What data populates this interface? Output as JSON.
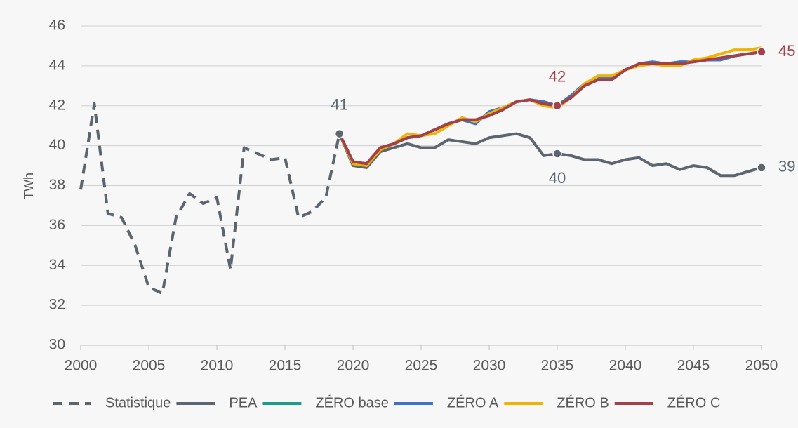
{
  "chart_data": {
    "type": "line",
    "ylabel": "TWh",
    "xlim": [
      2000,
      2050
    ],
    "ylim": [
      30,
      46
    ],
    "xticks": [
      2000,
      2005,
      2010,
      2015,
      2020,
      2025,
      2030,
      2035,
      2040,
      2045,
      2050
    ],
    "yticks": [
      30,
      32,
      34,
      36,
      38,
      40,
      42,
      44,
      46
    ],
    "grid": true,
    "legend": "bottom",
    "series": [
      {
        "name": "Statistique",
        "color": "#5b6570",
        "dashed": true,
        "x": [
          2000,
          2001,
          2002,
          2003,
          2004,
          2005,
          2006,
          2007,
          2008,
          2009,
          2010,
          2011,
          2012,
          2013,
          2014,
          2015,
          2016,
          2017,
          2018,
          2019
        ],
        "values": [
          37.8,
          42.1,
          36.6,
          36.4,
          35.0,
          32.9,
          32.6,
          36.4,
          37.6,
          37.1,
          37.4,
          33.8,
          39.9,
          39.6,
          39.3,
          39.4,
          36.4,
          36.7,
          37.4,
          40.6
        ]
      },
      {
        "name": "PEA",
        "color": "#5d6670",
        "x": [
          2019,
          2020,
          2021,
          2022,
          2023,
          2024,
          2025,
          2026,
          2027,
          2028,
          2029,
          2030,
          2031,
          2032,
          2033,
          2034,
          2035,
          2036,
          2037,
          2038,
          2039,
          2040,
          2041,
          2042,
          2043,
          2044,
          2045,
          2046,
          2047,
          2048,
          2049,
          2050
        ],
        "values": [
          40.6,
          39.0,
          38.9,
          39.7,
          39.9,
          40.1,
          39.9,
          39.9,
          40.3,
          40.2,
          40.1,
          40.4,
          40.5,
          40.6,
          40.4,
          39.5,
          39.6,
          39.5,
          39.3,
          39.3,
          39.1,
          39.3,
          39.4,
          39.0,
          39.1,
          38.8,
          39.0,
          38.9,
          38.5,
          38.5,
          38.7,
          38.9
        ]
      },
      {
        "name": "ZÉRO base",
        "color": "#1a9e8a",
        "x": [
          2019,
          2020,
          2021,
          2022,
          2023,
          2024,
          2025,
          2026,
          2027,
          2028,
          2029,
          2030,
          2031,
          2032,
          2033,
          2034,
          2035,
          2036,
          2037,
          2038,
          2039,
          2040,
          2041,
          2042,
          2043,
          2044,
          2045,
          2046,
          2047,
          2048,
          2049,
          2050
        ],
        "values": [
          40.6,
          39.1,
          39.0,
          39.8,
          40.1,
          40.4,
          40.5,
          40.8,
          41.1,
          41.3,
          41.1,
          41.7,
          41.9,
          42.2,
          42.3,
          42.2,
          42.0,
          42.5,
          43.1,
          43.4,
          43.4,
          43.8,
          44.1,
          44.2,
          44.1,
          44.2,
          44.2,
          44.3,
          44.3,
          44.5,
          44.6,
          44.7
        ]
      },
      {
        "name": "ZÉRO A",
        "color": "#3e73c4",
        "x": [
          2019,
          2020,
          2021,
          2022,
          2023,
          2024,
          2025,
          2026,
          2027,
          2028,
          2029,
          2030,
          2031,
          2032,
          2033,
          2034,
          2035,
          2036,
          2037,
          2038,
          2039,
          2040,
          2041,
          2042,
          2043,
          2044,
          2045,
          2046,
          2047,
          2048,
          2049,
          2050
        ],
        "values": [
          40.6,
          39.1,
          39.0,
          39.8,
          40.1,
          40.4,
          40.5,
          40.8,
          41.1,
          41.3,
          41.1,
          41.7,
          41.9,
          42.2,
          42.3,
          42.2,
          42.0,
          42.5,
          43.1,
          43.4,
          43.4,
          43.8,
          44.1,
          44.2,
          44.1,
          44.2,
          44.2,
          44.3,
          44.3,
          44.5,
          44.6,
          44.7
        ]
      },
      {
        "name": "ZÉRO B",
        "color": "#f0b400",
        "x": [
          2019,
          2020,
          2021,
          2022,
          2023,
          2024,
          2025,
          2026,
          2027,
          2028,
          2029,
          2030,
          2031,
          2032,
          2033,
          2034,
          2035,
          2036,
          2037,
          2038,
          2039,
          2040,
          2041,
          2042,
          2043,
          2044,
          2045,
          2046,
          2047,
          2048,
          2049,
          2050
        ],
        "values": [
          40.6,
          39.1,
          39.0,
          39.8,
          40.1,
          40.6,
          40.5,
          40.6,
          41.0,
          41.4,
          41.2,
          41.6,
          41.9,
          42.2,
          42.3,
          42.0,
          41.9,
          42.4,
          43.1,
          43.5,
          43.5,
          43.8,
          44.0,
          44.1,
          44.0,
          44.0,
          44.3,
          44.4,
          44.6,
          44.8,
          44.8,
          44.9
        ]
      },
      {
        "name": "ZÉRO C",
        "color": "#a3404a",
        "x": [
          2019,
          2020,
          2021,
          2022,
          2023,
          2024,
          2025,
          2026,
          2027,
          2028,
          2029,
          2030,
          2031,
          2032,
          2033,
          2034,
          2035,
          2036,
          2037,
          2038,
          2039,
          2040,
          2041,
          2042,
          2043,
          2044,
          2045,
          2046,
          2047,
          2048,
          2049,
          2050
        ],
        "values": [
          40.6,
          39.2,
          39.1,
          39.9,
          40.1,
          40.4,
          40.5,
          40.8,
          41.1,
          41.3,
          41.3,
          41.5,
          41.8,
          42.2,
          42.3,
          42.1,
          42.0,
          42.4,
          43.0,
          43.3,
          43.3,
          43.8,
          44.1,
          44.1,
          44.1,
          44.1,
          44.2,
          44.3,
          44.4,
          44.5,
          44.6,
          44.7
        ]
      }
    ],
    "annotations": [
      {
        "label": "41",
        "x": 2019,
        "y": 40.6,
        "color": "#5d6670",
        "position": "above"
      },
      {
        "label": "42",
        "x": 2035,
        "y": 42.0,
        "color": "#a3404a",
        "position": "above"
      },
      {
        "label": "40",
        "x": 2035,
        "y": 39.6,
        "color": "#5d6670",
        "position": "below"
      },
      {
        "label": "45",
        "x": 2050,
        "y": 44.7,
        "color": "#a3404a",
        "position": "right"
      },
      {
        "label": "39",
        "x": 2050,
        "y": 38.9,
        "color": "#5d6670",
        "position": "right"
      }
    ]
  }
}
